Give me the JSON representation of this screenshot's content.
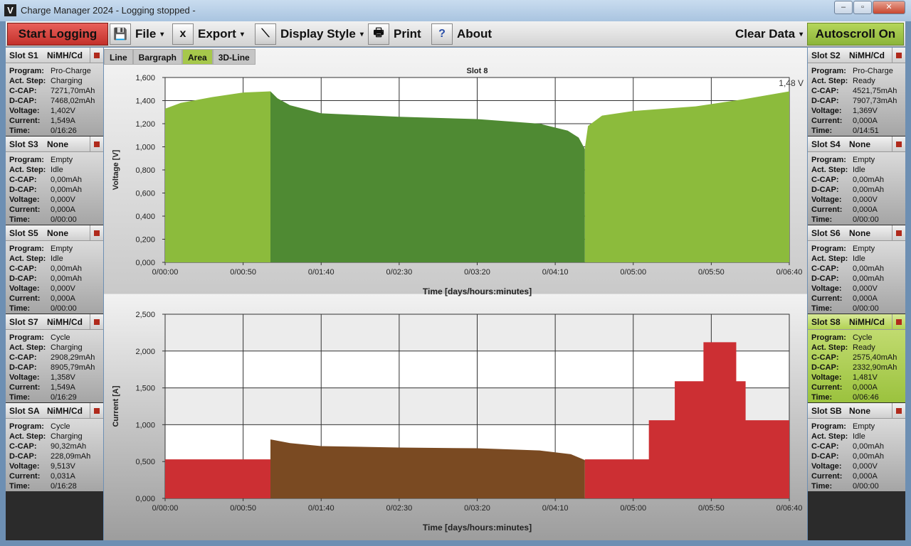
{
  "window": {
    "title": "Charge Manager 2024  - Logging stopped -",
    "icon_letter": "V"
  },
  "toolbar": {
    "start": "Start Logging",
    "file": "File",
    "export": "Export",
    "display_style": "Display Style",
    "print": "Print",
    "about": "About",
    "clear": "Clear Data",
    "autoscroll": "Autoscroll On"
  },
  "tabs": [
    {
      "label": "Line"
    },
    {
      "label": "Bargraph"
    },
    {
      "label": "Area",
      "active": true
    },
    {
      "label": "3D-Line"
    }
  ],
  "row_labels": {
    "program": "Program:",
    "step": "Act. Step:",
    "ccap": "C-CAP:",
    "dcap": "D-CAP:",
    "voltage": "Voltage:",
    "current": "Current:",
    "time": "Time:"
  },
  "left_slots": [
    {
      "name": "Slot S1",
      "type": "NiMH/Cd",
      "program": "Pro-Charge",
      "step": "Charging",
      "ccap": "7271,70mAh",
      "dcap": "7468,02mAh",
      "voltage": "1,402V",
      "current": "1,549A",
      "time": "0/16:26"
    },
    {
      "name": "Slot S3",
      "type": "None",
      "program": "Empty",
      "step": "Idle",
      "ccap": "0,00mAh",
      "dcap": "0,00mAh",
      "voltage": "0,000V",
      "current": "0,000A",
      "time": "0/00:00"
    },
    {
      "name": "Slot S5",
      "type": "None",
      "program": "Empty",
      "step": "Idle",
      "ccap": "0,00mAh",
      "dcap": "0,00mAh",
      "voltage": "0,000V",
      "current": "0,000A",
      "time": "0/00:00"
    },
    {
      "name": "Slot S7",
      "type": "NiMH/Cd",
      "program": "Cycle",
      "step": "Charging",
      "ccap": "2908,29mAh",
      "dcap": "8905,79mAh",
      "voltage": "1,358V",
      "current": "1,549A",
      "time": "0/16:29"
    },
    {
      "name": "Slot SA",
      "type": "NiMH/Cd",
      "program": "Cycle",
      "step": "Charging",
      "ccap": "90,32mAh",
      "dcap": "228,09mAh",
      "voltage": "9,513V",
      "current": "0,031A",
      "time": "0/16:28"
    }
  ],
  "right_slots": [
    {
      "name": "Slot S2",
      "type": "NiMH/Cd",
      "program": "Pro-Charge",
      "step": "Ready",
      "ccap": "4521,75mAh",
      "dcap": "7907,73mAh",
      "voltage": "1,369V",
      "current": "0,000A",
      "time": "0/14:51"
    },
    {
      "name": "Slot S4",
      "type": "None",
      "program": "Empty",
      "step": "Idle",
      "ccap": "0,00mAh",
      "dcap": "0,00mAh",
      "voltage": "0,000V",
      "current": "0,000A",
      "time": "0/00:00"
    },
    {
      "name": "Slot S6",
      "type": "None",
      "program": "Empty",
      "step": "Idle",
      "ccap": "0,00mAh",
      "dcap": "0,00mAh",
      "voltage": "0,000V",
      "current": "0,000A",
      "time": "0/00:00"
    },
    {
      "name": "Slot S8",
      "type": "NiMH/Cd",
      "program": "Cycle",
      "step": "Ready",
      "ccap": "2575,40mAh",
      "dcap": "2332,90mAh",
      "voltage": "1,481V",
      "current": "0,000A",
      "time": "0/06:46",
      "active": true
    },
    {
      "name": "Slot SB",
      "type": "None",
      "program": "Empty",
      "step": "Idle",
      "ccap": "0,00mAh",
      "dcap": "0,00mAh",
      "voltage": "0,000V",
      "current": "0,000A",
      "time": "0/00:00"
    }
  ],
  "chart_data": [
    {
      "type": "area",
      "title": "Slot 8",
      "xlabel": "Time [days/hours:minutes]",
      "ylabel": "Voltage [V]",
      "end_label": "1,48 V",
      "xlim_minutes": [
        0,
        400
      ],
      "ylim": [
        0,
        1.6
      ],
      "xticks": [
        "0/00:00",
        "0/00:50",
        "0/01:40",
        "0/02:30",
        "0/03:20",
        "0/04:10",
        "0/05:00",
        "0/05:50",
        "0/06:40"
      ],
      "yticks": [
        "0,000",
        "0,200",
        "0,400",
        "0,600",
        "0,800",
        "1,000",
        "1,200",
        "1,400",
        "1,600"
      ],
      "series": [
        {
          "phase": "charge",
          "color": "#8cbb3c",
          "points": [
            [
              0,
              1.33
            ],
            [
              10,
              1.38
            ],
            [
              30,
              1.43
            ],
            [
              50,
              1.47
            ],
            [
              67.5,
              1.48
            ]
          ]
        },
        {
          "phase": "discharge",
          "color": "#4f8a33",
          "points": [
            [
              67.5,
              1.48
            ],
            [
              72,
              1.42
            ],
            [
              80,
              1.36
            ],
            [
              100,
              1.29
            ],
            [
              150,
              1.26
            ],
            [
              200,
              1.24
            ],
            [
              240,
              1.2
            ],
            [
              258,
              1.14
            ],
            [
              265,
              1.08
            ],
            [
              269,
              0.98
            ]
          ]
        },
        {
          "phase": "charge",
          "color": "#8cbb3c",
          "points": [
            [
              269,
              0.99
            ],
            [
              271,
              1.18
            ],
            [
              280,
              1.27
            ],
            [
              300,
              1.31
            ],
            [
              340,
              1.35
            ],
            [
              370,
              1.41
            ],
            [
              400,
              1.48
            ]
          ]
        }
      ]
    },
    {
      "type": "area",
      "title": "",
      "xlabel": "Time [days/hours:minutes]",
      "ylabel": "Current [A]",
      "xlim_minutes": [
        0,
        400
      ],
      "ylim": [
        0,
        2.5
      ],
      "xticks": [
        "0/00:00",
        "0/00:50",
        "0/01:40",
        "0/02:30",
        "0/03:20",
        "0/04:10",
        "0/05:00",
        "0/05:50",
        "0/06:40"
      ],
      "yticks": [
        "0,000",
        "0,500",
        "1,000",
        "1,500",
        "2,000",
        "2,500"
      ],
      "series": [
        {
          "phase": "charge",
          "color": "#cc2f33",
          "points": [
            [
              0,
              0.53
            ],
            [
              67.5,
              0.53
            ]
          ]
        },
        {
          "phase": "discharge",
          "color": "#7a4a22",
          "points": [
            [
              67.5,
              0.8
            ],
            [
              80,
              0.75
            ],
            [
              100,
              0.71
            ],
            [
              150,
              0.69
            ],
            [
              200,
              0.68
            ],
            [
              240,
              0.65
            ],
            [
              260,
              0.6
            ],
            [
              269,
              0.52
            ]
          ]
        },
        {
          "phase": "charge",
          "color": "#cc2f33",
          "points": [
            [
              269,
              0.53
            ],
            [
              310,
              0.53
            ],
            [
              310,
              1.06
            ],
            [
              326.6,
              1.06
            ],
            [
              326.6,
              1.59
            ],
            [
              345,
              1.59
            ],
            [
              345,
              2.12
            ],
            [
              366,
              2.12
            ],
            [
              366,
              1.59
            ],
            [
              372,
              1.59
            ],
            [
              372,
              1.06
            ],
            [
              400,
              1.06
            ]
          ]
        }
      ]
    }
  ]
}
